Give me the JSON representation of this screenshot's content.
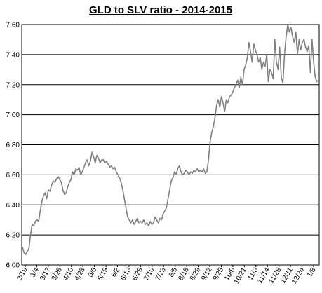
{
  "chart_data": {
    "type": "line",
    "title": "GLD to SLV ratio - 2014-2015",
    "xlabel": "",
    "ylabel": "",
    "ylim": [
      6.0,
      7.6
    ],
    "yticks": [
      "6.00",
      "6.20",
      "6.40",
      "6.60",
      "6.80",
      "7.00",
      "7.20",
      "7.40",
      "7.60"
    ],
    "grid": "horizontal",
    "legend": "none",
    "x_tick_labels": [
      "2/19",
      "3/4",
      "3/17",
      "3/28",
      "4/10",
      "4/23",
      "5/6",
      "5/19",
      "6/2",
      "6/13",
      "6/26",
      "7/10",
      "7/23",
      "8/5",
      "8/18",
      "8/29",
      "9/12",
      "9/25",
      "10/8",
      "10/21",
      "11/3",
      "11/14",
      "11/28",
      "12/11",
      "12/24",
      "1/8"
    ],
    "series": [
      {
        "color": "#808080",
        "values": [
          6.12,
          6.08,
          6.07,
          6.09,
          6.11,
          6.2,
          6.27,
          6.26,
          6.29,
          6.3,
          6.29,
          6.36,
          6.42,
          6.46,
          6.48,
          6.44,
          6.5,
          6.49,
          6.53,
          6.56,
          6.55,
          6.57,
          6.59,
          6.57,
          6.55,
          6.5,
          6.47,
          6.48,
          6.52,
          6.55,
          6.57,
          6.62,
          6.6,
          6.64,
          6.63,
          6.65,
          6.6,
          6.62,
          6.65,
          6.68,
          6.7,
          6.66,
          6.69,
          6.75,
          6.72,
          6.68,
          6.73,
          6.71,
          6.68,
          6.7,
          6.7,
          6.68,
          6.69,
          6.67,
          6.65,
          6.66,
          6.64,
          6.65,
          6.62,
          6.6,
          6.58,
          6.55,
          6.5,
          6.44,
          6.38,
          6.32,
          6.3,
          6.28,
          6.3,
          6.27,
          6.29,
          6.31,
          6.28,
          6.29,
          6.28,
          6.3,
          6.27,
          6.28,
          6.26,
          6.29,
          6.27,
          6.28,
          6.32,
          6.3,
          6.28,
          6.31,
          6.3,
          6.34,
          6.36,
          6.38,
          6.44,
          6.5,
          6.56,
          6.58,
          6.62,
          6.6,
          6.64,
          6.66,
          6.62,
          6.6,
          6.61,
          6.63,
          6.62,
          6.6,
          6.62,
          6.61,
          6.63,
          6.62,
          6.64,
          6.62,
          6.63,
          6.62,
          6.64,
          6.61,
          6.62,
          6.7,
          6.82,
          6.88,
          6.92,
          6.98,
          7.06,
          7.1,
          7.05,
          7.12,
          7.08,
          7.02,
          7.1,
          7.08,
          7.12,
          7.13,
          7.15,
          7.18,
          7.2,
          7.23,
          7.18,
          7.25,
          7.2,
          7.3,
          7.33,
          7.38,
          7.48,
          7.42,
          7.35,
          7.47,
          7.43,
          7.4,
          7.35,
          7.38,
          7.3,
          7.35,
          7.32,
          7.4,
          7.22,
          7.3,
          7.28,
          7.24,
          7.5,
          7.35,
          7.3,
          7.45,
          7.25,
          7.21,
          7.4,
          7.52,
          7.6,
          7.55,
          7.58,
          7.52,
          7.48,
          7.55,
          7.4,
          7.5,
          7.43,
          7.48,
          7.5,
          7.45,
          7.42,
          7.46,
          7.28,
          7.5,
          7.35,
          7.25,
          7.22,
          7.23
        ]
      }
    ]
  }
}
